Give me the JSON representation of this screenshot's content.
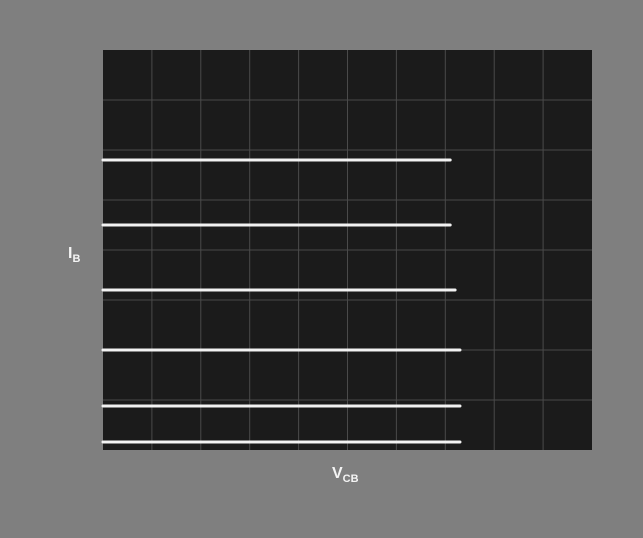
{
  "chart_data": {
    "type": "line",
    "ylabel": {
      "symbol": "I",
      "subscript": "B"
    },
    "xlabel": {
      "symbol": "V",
      "subscript": "CB"
    },
    "xlim": [
      0,
      10
    ],
    "ylim": [
      0,
      8
    ],
    "xdivisions": 10,
    "ydivisions": 8,
    "grid": true,
    "series": [
      {
        "color": "#f2f2f2",
        "x": [
          0,
          7.1
        ],
        "values": [
          5.8,
          5.8
        ]
      },
      {
        "color": "#f2f2f2",
        "x": [
          0,
          7.1
        ],
        "values": [
          4.5,
          4.5
        ]
      },
      {
        "color": "#f2f2f2",
        "x": [
          0,
          7.2
        ],
        "values": [
          3.2,
          3.2
        ]
      },
      {
        "color": "#f2f2f2",
        "x": [
          0,
          7.3
        ],
        "values": [
          2.0,
          2.0
        ]
      },
      {
        "color": "#f2f2f2",
        "x": [
          0,
          7.3
        ],
        "values": [
          0.88,
          0.88
        ]
      },
      {
        "color": "#f2f2f2",
        "x": [
          0,
          7.3
        ],
        "values": [
          0.16,
          0.16
        ]
      }
    ]
  }
}
